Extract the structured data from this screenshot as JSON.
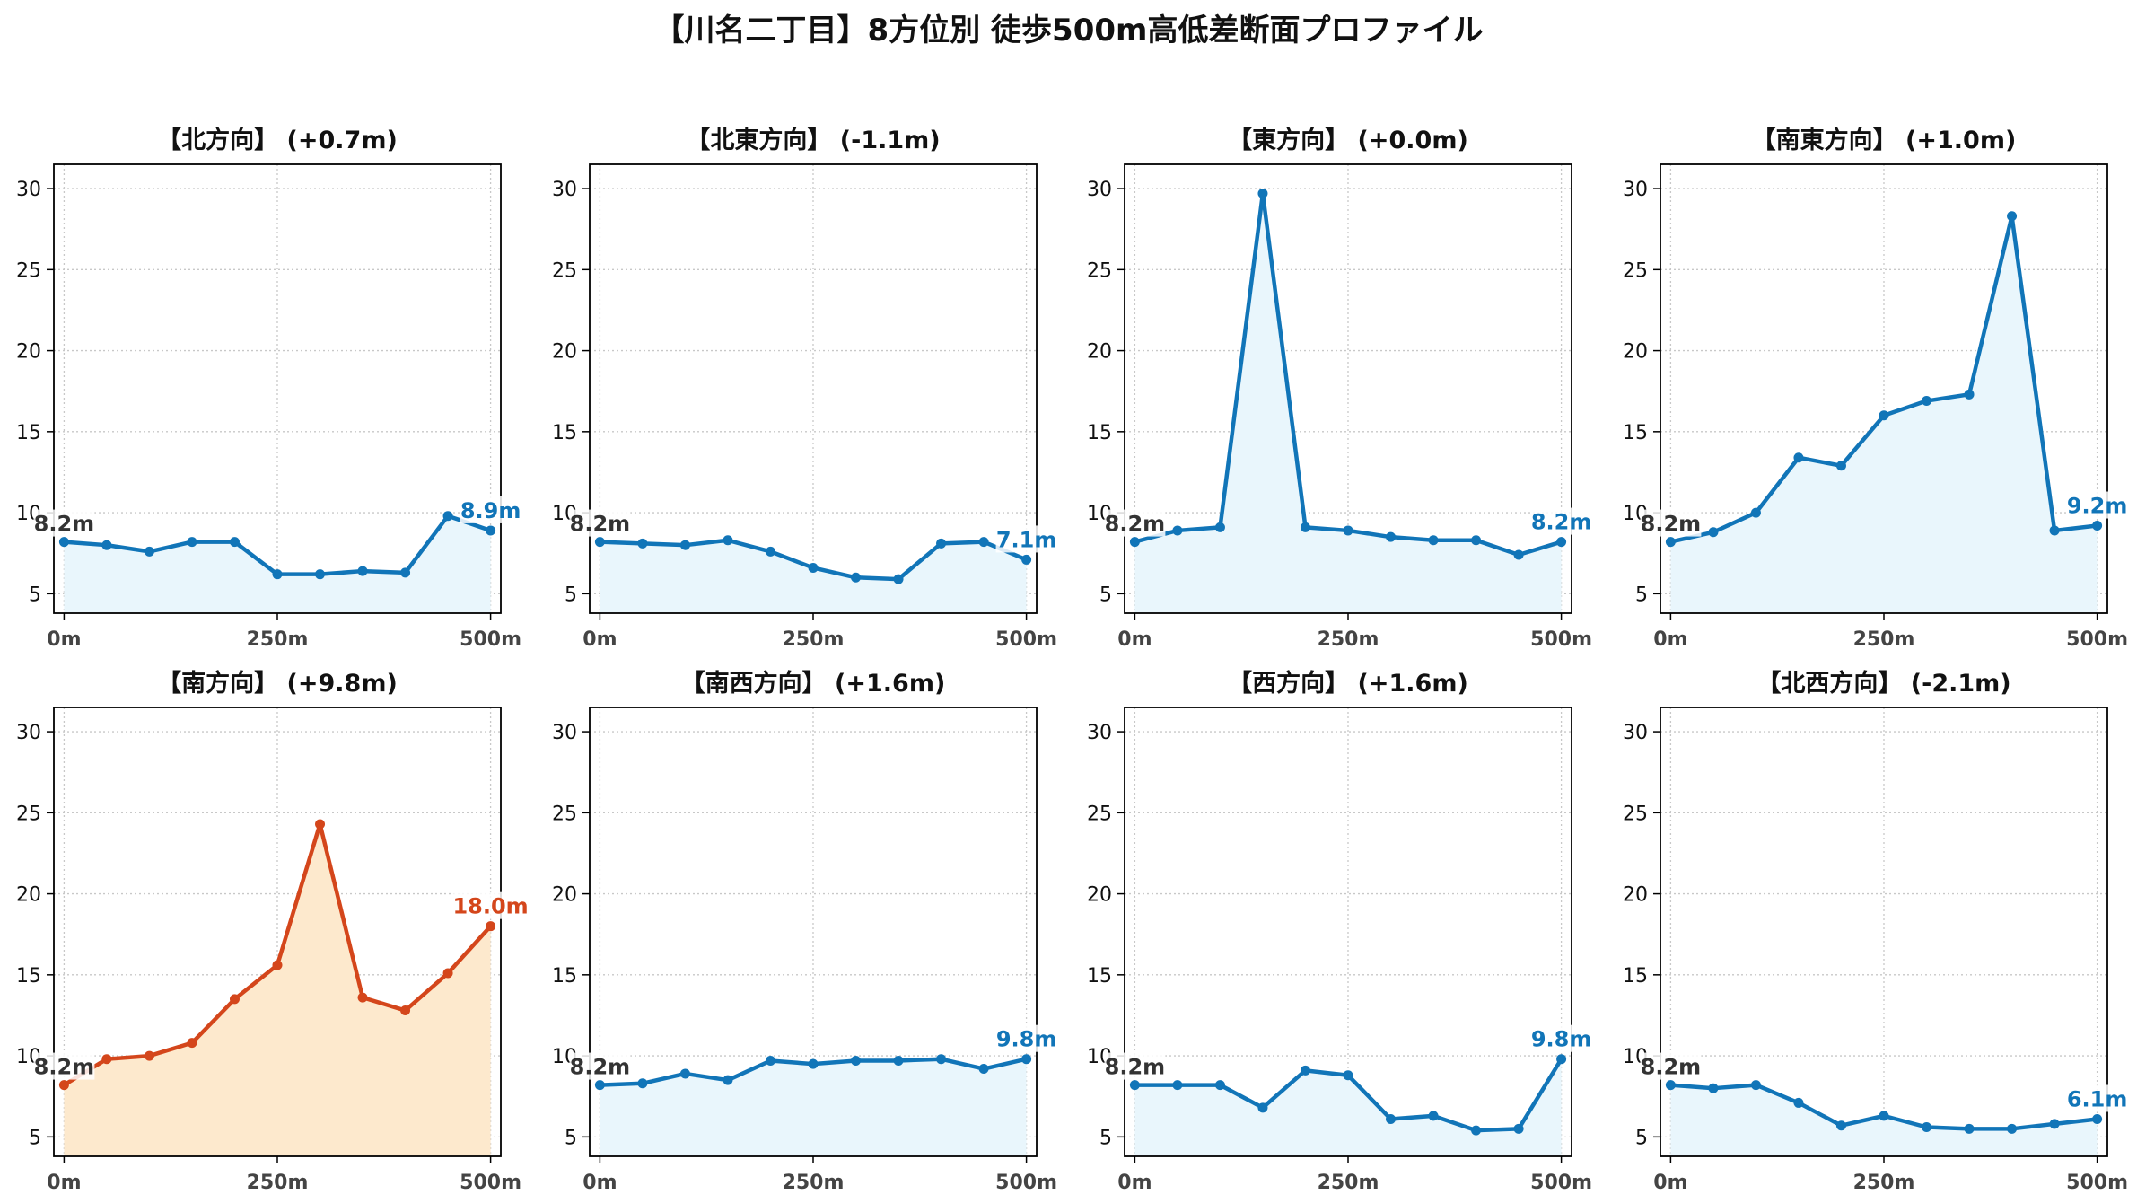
{
  "title": "【川名二丁目】8方位別 徒歩500m高低差断面プロファイル",
  "colors": {
    "normal_line": "#1175b8",
    "normal_fill": "#e9f6fc",
    "highlight_line": "#d4461b",
    "highlight_fill": "#fde9cd",
    "start_label": "#333333",
    "grid": "#c8c8c8"
  },
  "chart_data": [
    {
      "type": "area",
      "title": "【北方向】 (+0.7m)",
      "x": [
        0,
        50,
        100,
        150,
        200,
        250,
        300,
        350,
        400,
        450,
        500
      ],
      "values": [
        8.2,
        8.0,
        7.6,
        8.2,
        8.2,
        6.2,
        6.2,
        6.4,
        6.3,
        9.8,
        8.9
      ],
      "start_label": "8.2m",
      "end_label": "8.9m",
      "highlight": false,
      "xlim": [
        -12,
        512
      ],
      "ylim": [
        3.8,
        31.5
      ],
      "yticks": [
        5,
        10,
        15,
        20,
        25,
        30
      ],
      "xticks": [
        "0m",
        "250m",
        "500m"
      ],
      "grid": true
    },
    {
      "type": "area",
      "title": "【北東方向】 (-1.1m)",
      "x": [
        0,
        50,
        100,
        150,
        200,
        250,
        300,
        350,
        400,
        450,
        500
      ],
      "values": [
        8.2,
        8.1,
        8.0,
        8.3,
        7.6,
        6.6,
        6.0,
        5.9,
        8.1,
        8.2,
        7.1
      ],
      "start_label": "8.2m",
      "end_label": "7.1m",
      "highlight": false,
      "xlim": [
        -12,
        512
      ],
      "ylim": [
        3.8,
        31.5
      ],
      "yticks": [
        5,
        10,
        15,
        20,
        25,
        30
      ],
      "xticks": [
        "0m",
        "250m",
        "500m"
      ],
      "grid": true
    },
    {
      "type": "area",
      "title": "【東方向】 (+0.0m)",
      "x": [
        0,
        50,
        100,
        150,
        200,
        250,
        300,
        350,
        400,
        450,
        500
      ],
      "values": [
        8.2,
        8.9,
        9.1,
        29.7,
        9.1,
        8.9,
        8.5,
        8.3,
        8.3,
        7.4,
        8.2
      ],
      "start_label": "8.2m",
      "end_label": "8.2m",
      "highlight": false,
      "xlim": [
        -12,
        512
      ],
      "ylim": [
        3.8,
        31.5
      ],
      "yticks": [
        5,
        10,
        15,
        20,
        25,
        30
      ],
      "xticks": [
        "0m",
        "250m",
        "500m"
      ],
      "grid": true
    },
    {
      "type": "area",
      "title": "【南東方向】 (+1.0m)",
      "x": [
        0,
        50,
        100,
        150,
        200,
        250,
        300,
        350,
        400,
        450,
        500
      ],
      "values": [
        8.2,
        8.8,
        10.0,
        13.4,
        12.9,
        16.0,
        16.9,
        17.3,
        28.3,
        8.9,
        9.2
      ],
      "start_label": "8.2m",
      "end_label": "9.2m",
      "highlight": false,
      "xlim": [
        -12,
        512
      ],
      "ylim": [
        3.8,
        31.5
      ],
      "yticks": [
        5,
        10,
        15,
        20,
        25,
        30
      ],
      "xticks": [
        "0m",
        "250m",
        "500m"
      ],
      "grid": true
    },
    {
      "type": "area",
      "title": "【南方向】 (+9.8m)",
      "x": [
        0,
        50,
        100,
        150,
        200,
        250,
        300,
        350,
        400,
        450,
        500
      ],
      "values": [
        8.2,
        9.8,
        10.0,
        10.8,
        13.5,
        15.6,
        24.3,
        13.6,
        12.8,
        15.1,
        18.0
      ],
      "start_label": "8.2m",
      "end_label": "18.0m",
      "highlight": true,
      "xlim": [
        -12,
        512
      ],
      "ylim": [
        3.8,
        31.5
      ],
      "yticks": [
        5,
        10,
        15,
        20,
        25,
        30
      ],
      "xticks": [
        "0m",
        "250m",
        "500m"
      ],
      "grid": true
    },
    {
      "type": "area",
      "title": "【南西方向】 (+1.6m)",
      "x": [
        0,
        50,
        100,
        150,
        200,
        250,
        300,
        350,
        400,
        450,
        500
      ],
      "values": [
        8.2,
        8.3,
        8.9,
        8.5,
        9.7,
        9.5,
        9.7,
        9.7,
        9.8,
        9.2,
        9.8
      ],
      "start_label": "8.2m",
      "end_label": "9.8m",
      "highlight": false,
      "xlim": [
        -12,
        512
      ],
      "ylim": [
        3.8,
        31.5
      ],
      "yticks": [
        5,
        10,
        15,
        20,
        25,
        30
      ],
      "xticks": [
        "0m",
        "250m",
        "500m"
      ],
      "grid": true
    },
    {
      "type": "area",
      "title": "【西方向】 (+1.6m)",
      "x": [
        0,
        50,
        100,
        150,
        200,
        250,
        300,
        350,
        400,
        450,
        500
      ],
      "values": [
        8.2,
        8.2,
        8.2,
        6.8,
        9.1,
        8.8,
        6.1,
        6.3,
        5.4,
        5.5,
        9.8
      ],
      "start_label": "8.2m",
      "end_label": "9.8m",
      "highlight": false,
      "xlim": [
        -12,
        512
      ],
      "ylim": [
        3.8,
        31.5
      ],
      "yticks": [
        5,
        10,
        15,
        20,
        25,
        30
      ],
      "xticks": [
        "0m",
        "250m",
        "500m"
      ],
      "grid": true
    },
    {
      "type": "area",
      "title": "【北西方向】 (-2.1m)",
      "x": [
        0,
        50,
        100,
        150,
        200,
        250,
        300,
        350,
        400,
        450,
        500
      ],
      "values": [
        8.2,
        8.0,
        8.2,
        7.1,
        5.7,
        6.3,
        5.6,
        5.5,
        5.5,
        5.8,
        6.1
      ],
      "start_label": "8.2m",
      "end_label": "6.1m",
      "highlight": false,
      "xlim": [
        -12,
        512
      ],
      "ylim": [
        3.8,
        31.5
      ],
      "yticks": [
        5,
        10,
        15,
        20,
        25,
        30
      ],
      "xticks": [
        "0m",
        "250m",
        "500m"
      ],
      "grid": true
    }
  ]
}
